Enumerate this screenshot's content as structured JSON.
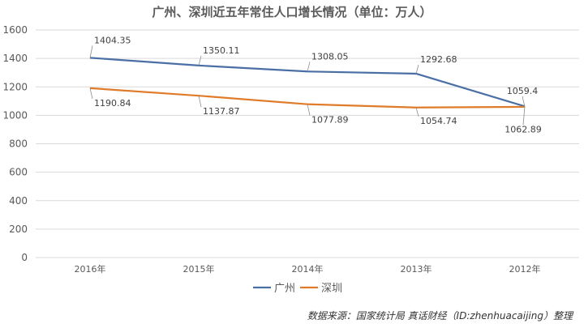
{
  "chart_data": {
    "type": "line",
    "title": "广州、深圳近五年常住人口增长情况（单位：万人）",
    "categories": [
      "2016年",
      "2015年",
      "2014年",
      "2013年",
      "2012年"
    ],
    "ylim": [
      0,
      1600
    ],
    "yticks": [
      0,
      200,
      400,
      600,
      800,
      1000,
      1200,
      1400,
      1600
    ],
    "grid": true,
    "legend_position": "bottom",
    "series": [
      {
        "name": "广州",
        "color": "#4a6fa5",
        "values": [
          1404.35,
          1350.11,
          1308.05,
          1292.68,
          1062.89
        ],
        "labels": [
          "1404.35",
          "1350.11",
          "1308.05",
          "1292.68",
          "1062.89"
        ]
      },
      {
        "name": "深圳",
        "color": "#e07b2a",
        "values": [
          1190.84,
          1137.87,
          1077.89,
          1054.74,
          1059.4
        ],
        "labels": [
          "1190.84",
          "1137.87",
          "1077.89",
          "1054.74",
          "1059.4"
        ]
      }
    ]
  },
  "source_note": "数据来源：国家统计局 真话财经（ID:zhenhuacaijing）整理"
}
